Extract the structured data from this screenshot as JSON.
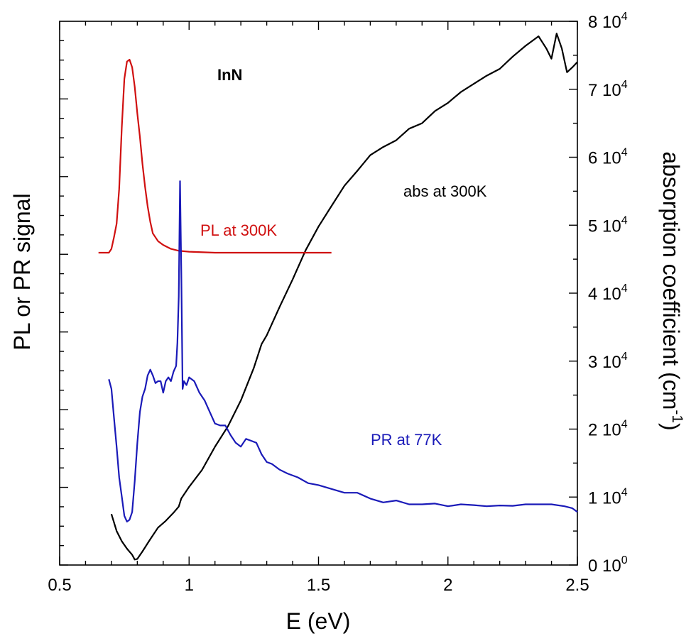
{
  "chart_data": {
    "type": "line",
    "xlabel": "E (eV)",
    "ylabel_left": "PL or PR signal",
    "ylabel_right": "absorption coefficient (cm",
    "ylabel_right_sup": "-1",
    "ylabel_right_tail": ")",
    "xlim": [
      0.5,
      2.5
    ],
    "ylim_right": [
      0,
      80000
    ],
    "x_ticks": [
      {
        "value": 0.5,
        "label": "0.5"
      },
      {
        "value": 1,
        "label": "1"
      },
      {
        "value": 1.5,
        "label": "1.5"
      },
      {
        "value": 2,
        "label": "2"
      },
      {
        "value": 2.5,
        "label": "2.5"
      }
    ],
    "y_right_ticks": [
      {
        "value": 0,
        "mant": "0 10",
        "exp": "0"
      },
      {
        "value": 10000,
        "mant": "1 10",
        "exp": "4"
      },
      {
        "value": 20000,
        "mant": "2 10",
        "exp": "4"
      },
      {
        "value": 30000,
        "mant": "3 10",
        "exp": "4"
      },
      {
        "value": 40000,
        "mant": "4 10",
        "exp": "4"
      },
      {
        "value": 50000,
        "mant": "5 10",
        "exp": "4"
      },
      {
        "value": 60000,
        "mant": "6 10",
        "exp": "4"
      },
      {
        "value": 70000,
        "mant": "7 10",
        "exp": "4"
      },
      {
        "value": 80000,
        "mant": "8 10",
        "exp": "4"
      }
    ],
    "annotations": {
      "material": "InN",
      "pl": "PL at 300K",
      "pr": "PR at 77K",
      "abs": "abs at 300K"
    },
    "series": [
      {
        "name": "abs at 300K",
        "color": "#000000",
        "axis": "right",
        "x": [
          0.7,
          0.72,
          0.74,
          0.76,
          0.78,
          0.79,
          0.8,
          0.82,
          0.85,
          0.88,
          0.91,
          0.94,
          0.96,
          0.97,
          1.0,
          1.05,
          1.1,
          1.15,
          1.2,
          1.25,
          1.28,
          1.3,
          1.35,
          1.4,
          1.45,
          1.5,
          1.55,
          1.6,
          1.65,
          1.7,
          1.75,
          1.8,
          1.85,
          1.9,
          1.95,
          2.0,
          2.05,
          2.1,
          2.15,
          2.2,
          2.25,
          2.3,
          2.35,
          2.38,
          2.4,
          2.42,
          2.44,
          2.46,
          2.48,
          2.5
        ],
        "y": [
          7500,
          5000,
          3500,
          2400,
          1500,
          800,
          900,
          2000,
          3800,
          5500,
          6500,
          7700,
          8600,
          9800,
          11500,
          14000,
          17400,
          20400,
          24200,
          29000,
          32500,
          33800,
          38000,
          42000,
          46300,
          49800,
          52800,
          55800,
          58000,
          60300,
          61500,
          62500,
          64200,
          65000,
          66800,
          68000,
          69600,
          70800,
          72000,
          73000,
          74800,
          76400,
          77800,
          76000,
          74500,
          78200,
          76000,
          72500,
          73200,
          74000
        ]
      },
      {
        "name": "PL at 300K",
        "color": "#d01010",
        "axis": "left",
        "x": [
          0.65,
          0.69,
          0.7,
          0.71,
          0.72,
          0.73,
          0.74,
          0.75,
          0.76,
          0.77,
          0.78,
          0.79,
          0.8,
          0.81,
          0.82,
          0.83,
          0.84,
          0.85,
          0.86,
          0.88,
          0.9,
          0.93,
          0.96,
          1.0,
          1.1,
          1.2,
          1.3,
          1.4,
          1.55
        ],
        "y": [
          0.0,
          0.0,
          0.02,
          0.08,
          0.15,
          0.33,
          0.65,
          0.9,
          0.99,
          1.0,
          0.96,
          0.86,
          0.72,
          0.6,
          0.46,
          0.34,
          0.24,
          0.16,
          0.1,
          0.06,
          0.04,
          0.02,
          0.01,
          0.005,
          0.0,
          0.0,
          0.0,
          0.0,
          0.0
        ]
      },
      {
        "name": "PR at 77K",
        "color": "#1a1ab8",
        "axis": "left",
        "x": [
          0.69,
          0.7,
          0.71,
          0.72,
          0.73,
          0.74,
          0.75,
          0.76,
          0.77,
          0.78,
          0.79,
          0.8,
          0.81,
          0.82,
          0.83,
          0.84,
          0.85,
          0.86,
          0.87,
          0.88,
          0.89,
          0.9,
          0.91,
          0.92,
          0.93,
          0.94,
          0.95,
          0.955,
          0.96,
          0.965,
          0.97,
          0.975,
          0.98,
          0.99,
          1.0,
          1.02,
          1.04,
          1.06,
          1.08,
          1.1,
          1.12,
          1.14,
          1.16,
          1.18,
          1.2,
          1.22,
          1.24,
          1.26,
          1.28,
          1.3,
          1.32,
          1.35,
          1.38,
          1.42,
          1.46,
          1.5,
          1.55,
          1.6,
          1.65,
          1.7,
          1.75,
          1.8,
          1.85,
          1.9,
          1.95,
          2.0,
          2.05,
          2.1,
          2.15,
          2.2,
          2.25,
          2.3,
          2.35,
          2.4,
          2.45,
          2.48,
          2.5
        ],
        "y": [
          0.385,
          0.36,
          0.285,
          0.21,
          0.13,
          0.08,
          0.03,
          0.015,
          0.02,
          0.04,
          0.12,
          0.22,
          0.3,
          0.34,
          0.36,
          0.395,
          0.41,
          0.395,
          0.375,
          0.38,
          0.38,
          0.35,
          0.38,
          0.39,
          0.38,
          0.405,
          0.42,
          0.48,
          0.6,
          0.9,
          0.66,
          0.36,
          0.38,
          0.37,
          0.39,
          0.38,
          0.35,
          0.33,
          0.3,
          0.27,
          0.265,
          0.265,
          0.24,
          0.22,
          0.21,
          0.23,
          0.225,
          0.22,
          0.19,
          0.17,
          0.165,
          0.15,
          0.14,
          0.13,
          0.115,
          0.11,
          0.1,
          0.09,
          0.09,
          0.075,
          0.065,
          0.07,
          0.06,
          0.06,
          0.062,
          0.055,
          0.06,
          0.058,
          0.055,
          0.057,
          0.056,
          0.06,
          0.06,
          0.06,
          0.055,
          0.05,
          0.04
        ]
      }
    ]
  }
}
